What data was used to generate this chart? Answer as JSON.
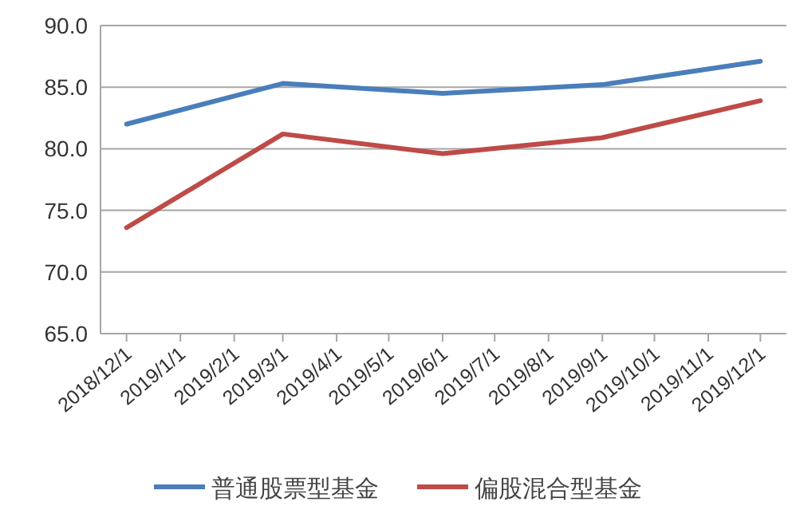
{
  "chart_data": {
    "type": "line",
    "x": [
      "2018-12-01",
      "2019-03-01",
      "2019-06-01",
      "2019-09-01",
      "2019-12-01"
    ],
    "series": [
      {
        "name": "普通股票型基金",
        "color": "#4a7ebb",
        "values": [
          82.0,
          85.3,
          84.5,
          85.2,
          87.1
        ]
      },
      {
        "name": "偏股混合型基金",
        "color": "#be4b48",
        "values": [
          73.6,
          81.2,
          79.6,
          80.9,
          83.9
        ]
      }
    ],
    "xlim": [
      "2018-11-16",
      "2019-12-16"
    ],
    "xticks": [
      {
        "value": "2018-12-01",
        "label": "2018/12/1"
      },
      {
        "value": "2019-01-01",
        "label": "2019/1/1"
      },
      {
        "value": "2019-02-01",
        "label": "2019/2/1"
      },
      {
        "value": "2019-03-01",
        "label": "2019/3/1"
      },
      {
        "value": "2019-04-01",
        "label": "2019/4/1"
      },
      {
        "value": "2019-05-01",
        "label": "2019/5/1"
      },
      {
        "value": "2019-06-01",
        "label": "2019/6/1"
      },
      {
        "value": "2019-07-01",
        "label": "2019/7/1"
      },
      {
        "value": "2019-08-01",
        "label": "2019/8/1"
      },
      {
        "value": "2019-09-01",
        "label": "2019/9/1"
      },
      {
        "value": "2019-10-01",
        "label": "2019/10/1"
      },
      {
        "value": "2019-11-01",
        "label": "2019/11/1"
      },
      {
        "value": "2019-12-01",
        "label": "2019/12/1"
      }
    ],
    "ylim": [
      65,
      90
    ],
    "yticks": [
      {
        "value": 65,
        "label": "65.0"
      },
      {
        "value": 70,
        "label": "70.0"
      },
      {
        "value": 75,
        "label": "75.0"
      },
      {
        "value": 80,
        "label": "80.0"
      },
      {
        "value": 85,
        "label": "85.0"
      },
      {
        "value": 90,
        "label": "90.0"
      }
    ],
    "grid": "y",
    "legend": "bottom",
    "line_style": "solid"
  }
}
